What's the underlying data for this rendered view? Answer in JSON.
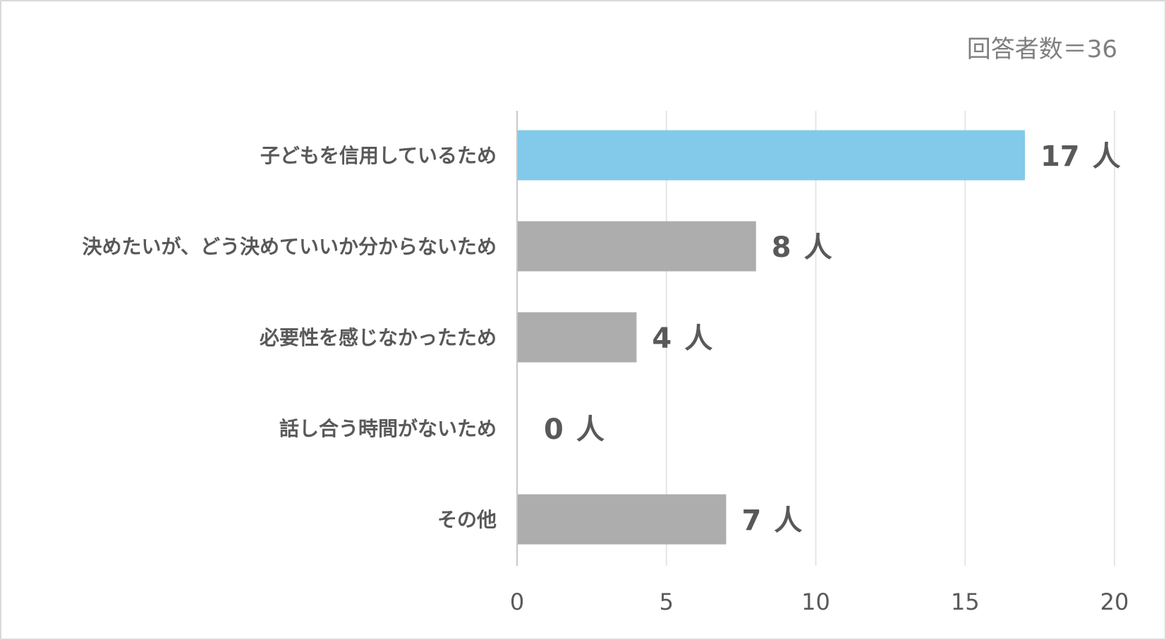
{
  "chart_data": {
    "type": "bar",
    "orientation": "horizontal",
    "note": "回答者数＝36",
    "categories": [
      "子どもを信用しているため",
      "決めたいが、どう決めていいか分からないため",
      "必要性を感じなかったため",
      "話し合う時間がないため",
      "その他"
    ],
    "values": [
      17,
      8,
      4,
      0,
      7
    ],
    "value_unit": "人",
    "xlim": [
      0,
      20
    ],
    "xticks": [
      0,
      5,
      10,
      15,
      20
    ],
    "grid": true,
    "legend": "none",
    "colors": {
      "highlight": "#82c9ea",
      "default": "#adadad",
      "grid": "#e6e6e6",
      "axis": "#c8c8c8"
    },
    "highlight_index": 0
  }
}
